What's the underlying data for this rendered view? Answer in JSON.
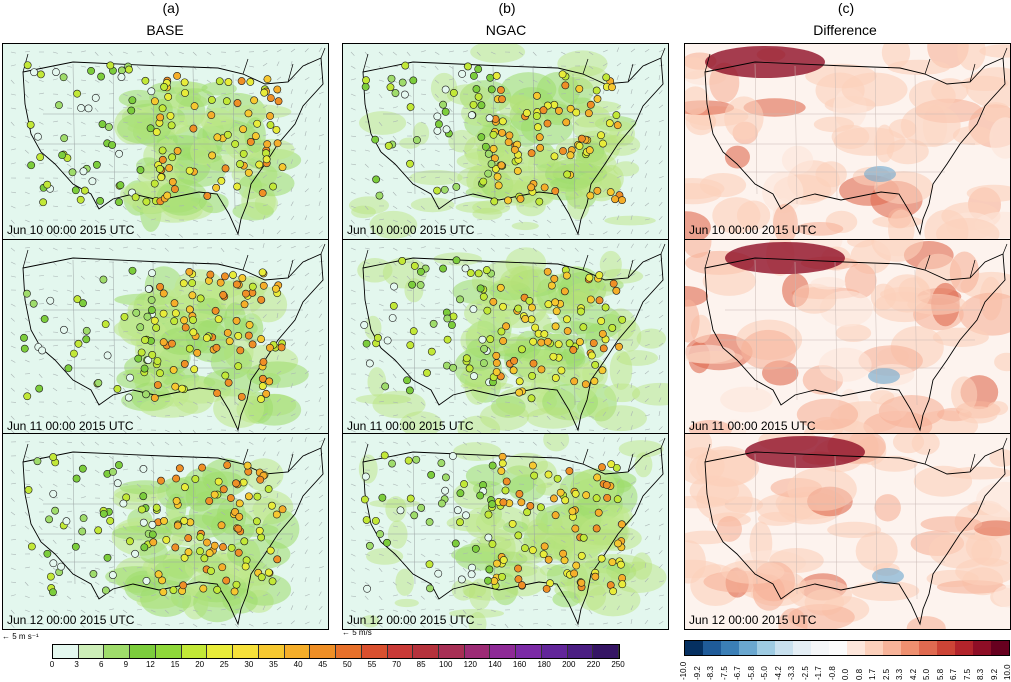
{
  "columns": [
    {
      "letter": "(a)",
      "title": "BASE"
    },
    {
      "letter": "(b)",
      "title": "NGAC"
    },
    {
      "letter": "(c)",
      "title": "Difference"
    }
  ],
  "timestamps": [
    "Jun 10 00:00 2015 UTC",
    "Jun 11 00:00 2015 UTC",
    "Jun 12 00:00 2015 UTC"
  ],
  "wind_scale": {
    "left": "5 m s⁻¹",
    "mid": "5 m/s"
  },
  "colors": {
    "conc_bar": [
      "#e4f8ef",
      "#cdeeb8",
      "#9fdc6b",
      "#7ccd3c",
      "#8fd83a",
      "#c2e837",
      "#e8ec3a",
      "#f6e13a",
      "#f6c830",
      "#f5ae2a",
      "#ef8f26",
      "#e7702a",
      "#d9502f",
      "#c93a37",
      "#b5323c",
      "#a72f55",
      "#9c2b75",
      "#8e2a97",
      "#7b2aa6",
      "#62269a",
      "#4b1e83",
      "#351564"
    ],
    "diff_bar": [
      "#053061",
      "#1f5b99",
      "#3b7fb6",
      "#6aa7cf",
      "#9ecbe2",
      "#c8e0ee",
      "#e4eef5",
      "#f4f6f8",
      "#fbfbfb",
      "#fde6db",
      "#fcd0bb",
      "#f7b399",
      "#ef9070",
      "#e06a50",
      "#cc4436",
      "#b2242b",
      "#8e0e26",
      "#67001f"
    ]
  },
  "chart_data": {
    "type": "heatmap",
    "panel_layout": {
      "rows": 3,
      "cols": 3
    },
    "concentration_colorbar": {
      "ticks": [
        "0",
        "3",
        "6",
        "9",
        "12",
        "15",
        "20",
        "25",
        "30",
        "35",
        "40",
        "45",
        "50",
        "55",
        "70",
        "85",
        "100",
        "120",
        "140",
        "160",
        "180",
        "200",
        "220",
        "250"
      ]
    },
    "difference_colorbar": {
      "ticks": [
        "-10.0",
        "-9.2",
        "-8.3",
        "-7.5",
        "-6.7",
        "-5.8",
        "-5.0",
        "-4.2",
        "-3.3",
        "-2.5",
        "-1.7",
        "-0.8",
        "0.0",
        "0.8",
        "1.7",
        "2.5",
        "3.3",
        "4.2",
        "5.0",
        "5.8",
        "6.7",
        "7.5",
        "8.3",
        "9.2",
        "10.0"
      ]
    }
  }
}
